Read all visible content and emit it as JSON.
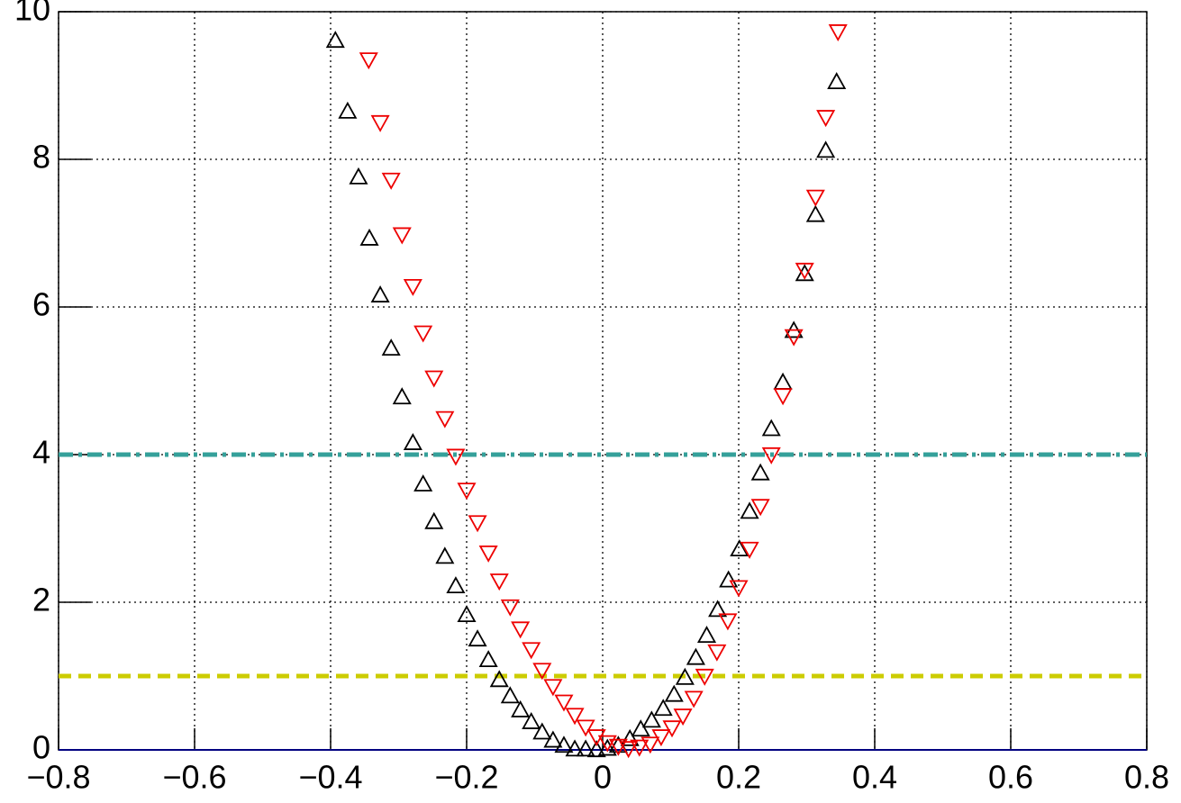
{
  "chart_data": {
    "type": "scatter",
    "xlim": [
      -0.8,
      0.8
    ],
    "ylim": [
      0,
      10
    ],
    "xticks": [
      {
        "value": -0.8,
        "label": "−0.8"
      },
      {
        "value": -0.6,
        "label": "−0.6"
      },
      {
        "value": -0.4,
        "label": "−0.4"
      },
      {
        "value": -0.2,
        "label": "−0.2"
      },
      0,
      0.2,
      0.4,
      0.6,
      0.8
    ],
    "yticks": [
      0,
      2,
      4,
      6,
      8,
      10
    ],
    "grid": true,
    "hlines": [
      {
        "value": 4,
        "color": "#35a09a",
        "style": "dashdot"
      },
      {
        "value": 1,
        "color": "#cccc00",
        "style": "dashed"
      },
      {
        "value": 0,
        "color": "#000080",
        "style": "solid"
      }
    ],
    "series": [
      {
        "color": "#000000",
        "marker": "triangle-up",
        "x": [
          -0.393,
          -0.375,
          -0.359,
          -0.343,
          -0.327,
          -0.311,
          -0.295,
          -0.279,
          -0.264,
          -0.248,
          -0.232,
          -0.216,
          -0.2,
          -0.184,
          -0.168,
          -0.152,
          -0.136,
          -0.121,
          -0.105,
          -0.089,
          -0.073,
          -0.057,
          -0.041,
          -0.025,
          -0.009,
          0.007,
          0.023,
          0.04,
          0.056,
          0.072,
          0.089,
          0.105,
          0.121,
          0.137,
          0.153,
          0.169,
          0.185,
          0.201,
          0.216,
          0.232,
          0.248,
          0.265,
          0.281,
          0.297,
          0.313,
          0.328,
          0.344
        ],
        "values": [
          9.61,
          8.65,
          7.76,
          6.93,
          6.16,
          5.44,
          4.78,
          4.16,
          3.6,
          3.09,
          2.62,
          2.22,
          1.83,
          1.5,
          1.22,
          0.95,
          0.73,
          0.54,
          0.38,
          0.24,
          0.13,
          0.06,
          0.01,
          0.01,
          0.0,
          0.02,
          0.06,
          0.15,
          0.28,
          0.4,
          0.56,
          0.75,
          0.98,
          1.25,
          1.55,
          1.9,
          2.3,
          2.72,
          3.23,
          3.75,
          4.35,
          4.98,
          5.68,
          6.45,
          7.25,
          8.12,
          9.05
        ]
      },
      {
        "color": "#ee0000",
        "marker": "triangle-down",
        "x": [
          -0.344,
          -0.327,
          -0.311,
          -0.295,
          -0.279,
          -0.264,
          -0.248,
          -0.232,
          -0.216,
          -0.2,
          -0.184,
          -0.168,
          -0.152,
          -0.136,
          -0.121,
          -0.105,
          -0.089,
          -0.073,
          -0.057,
          -0.041,
          -0.025,
          -0.009,
          0.007,
          0.023,
          0.038,
          0.054,
          0.07,
          0.086,
          0.102,
          0.118,
          0.134,
          0.15,
          0.168,
          0.184,
          0.2,
          0.216,
          0.232,
          0.248,
          0.265,
          0.281,
          0.297,
          0.313,
          0.328,
          0.346
        ],
        "values": [
          9.35,
          8.5,
          7.72,
          6.98,
          6.28,
          5.65,
          5.04,
          4.49,
          3.98,
          3.52,
          3.08,
          2.67,
          2.29,
          1.94,
          1.64,
          1.36,
          1.08,
          0.86,
          0.65,
          0.47,
          0.31,
          0.18,
          0.1,
          0.05,
          0.02,
          0.04,
          0.08,
          0.18,
          0.3,
          0.46,
          0.7,
          1.0,
          1.33,
          1.75,
          2.2,
          2.72,
          3.3,
          4.0,
          4.8,
          5.6,
          6.5,
          7.49,
          8.57,
          9.73
        ]
      }
    ]
  }
}
